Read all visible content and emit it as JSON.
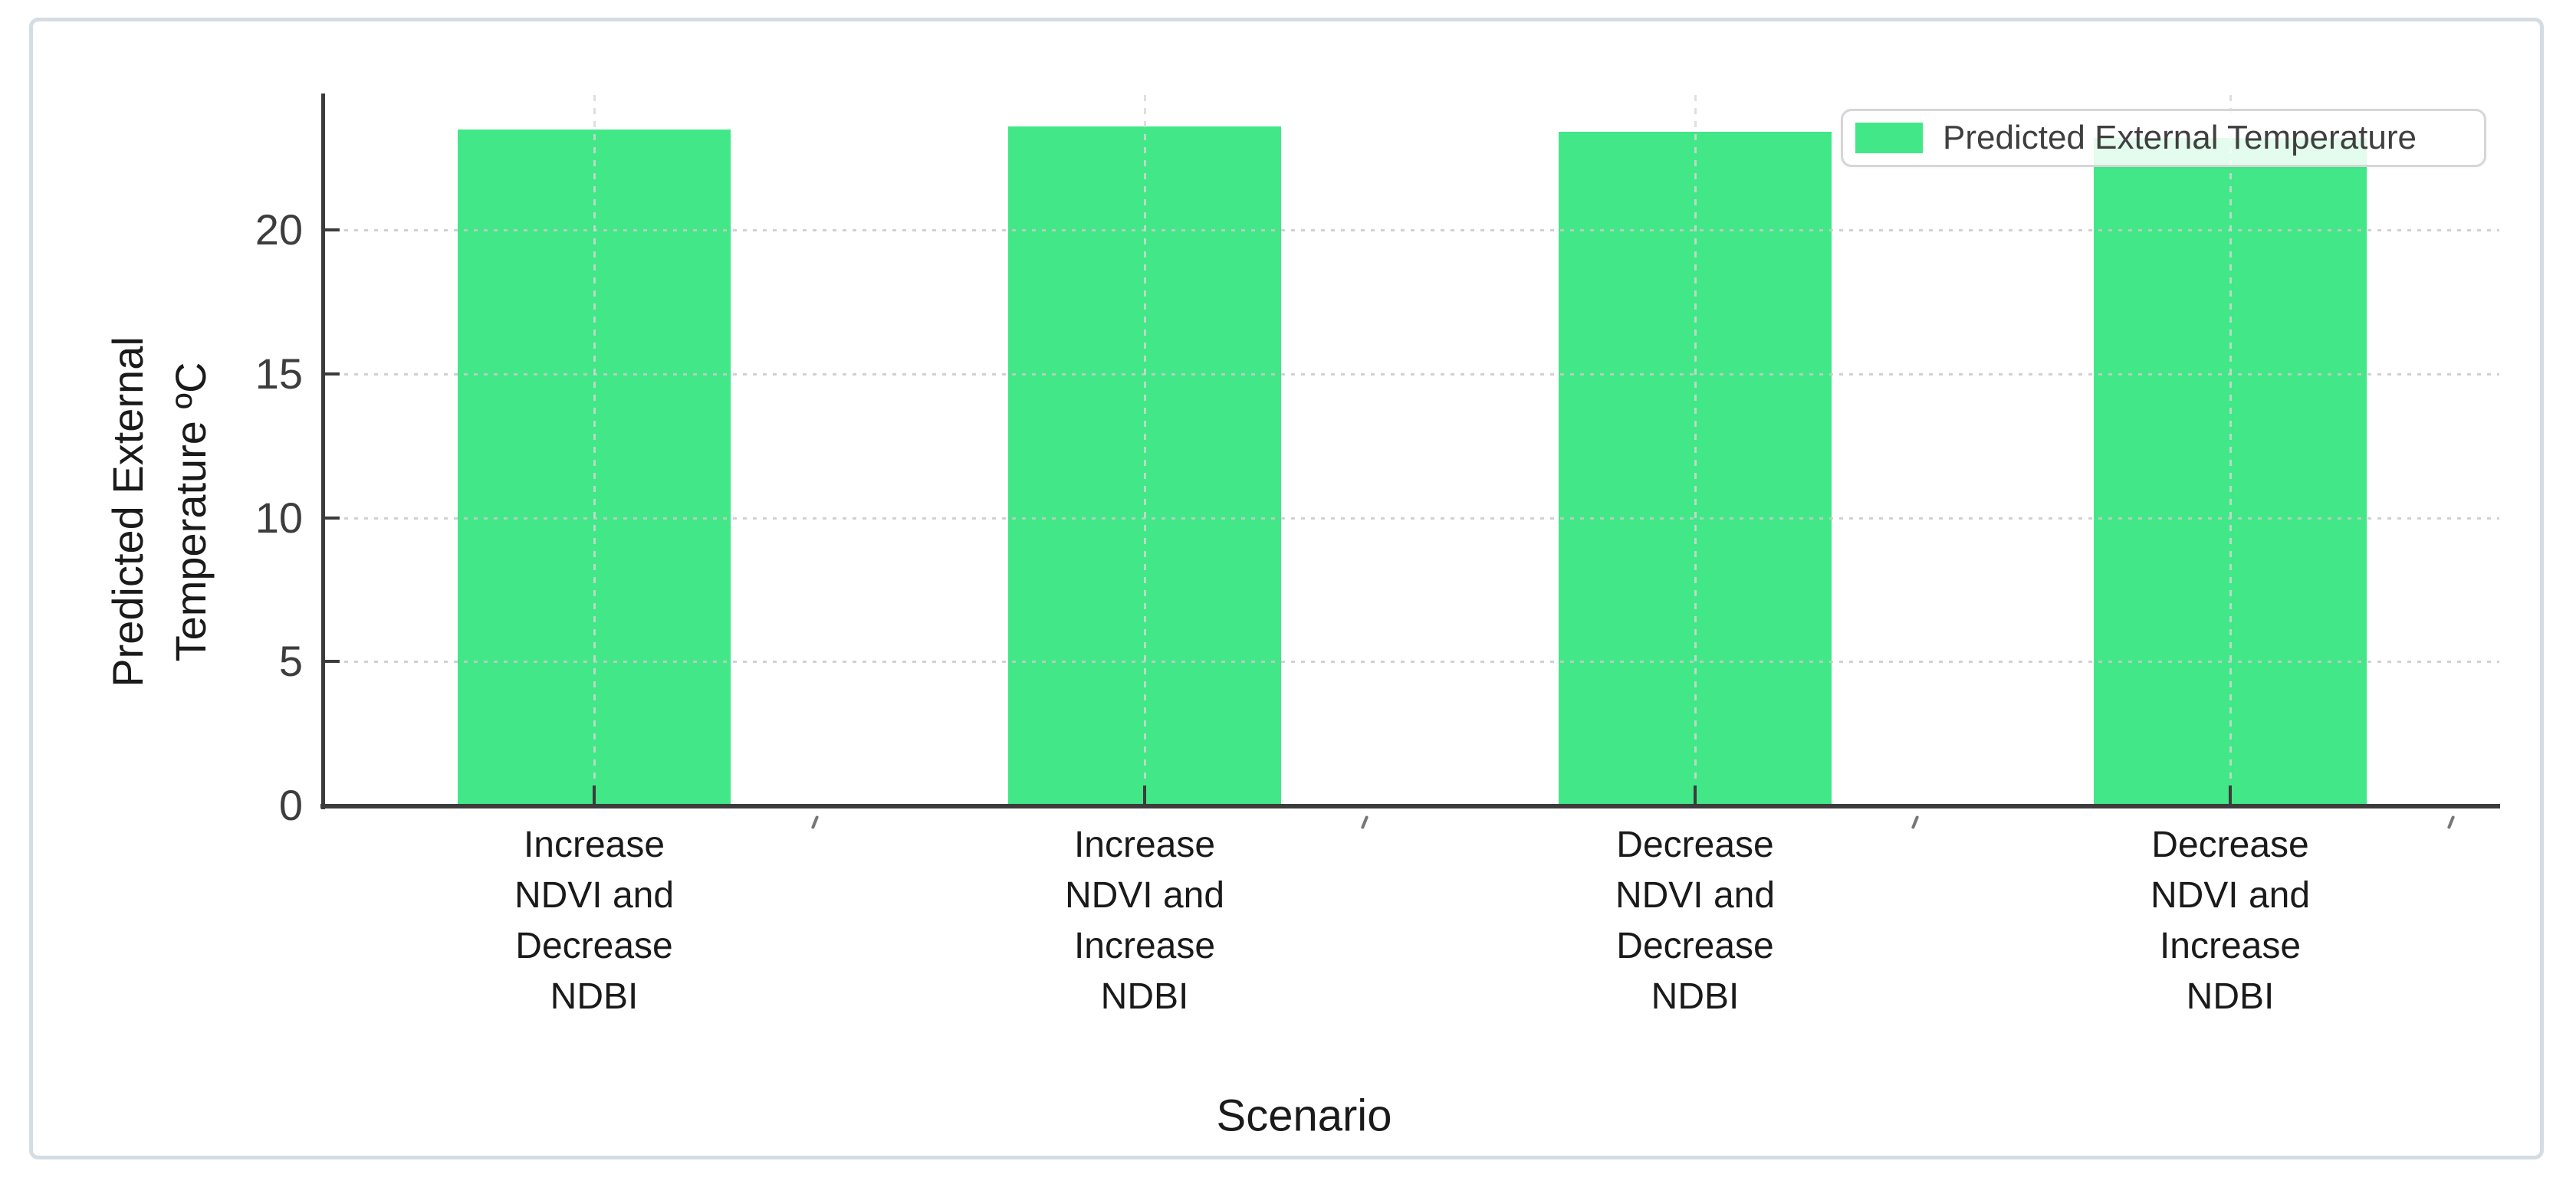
{
  "chart_data": {
    "type": "bar",
    "title": "",
    "categories": [
      "Increase NDVI and Decrease NDBI",
      "Increase NDVI and Increase NDBI",
      "Decrease NDVI and Decrease NDBI",
      "Decrease NDVI and Increase NDBI"
    ],
    "category_lines": [
      [
        "Increase",
        "NDVI and",
        "Decrease",
        "NDBI"
      ],
      [
        "Increase",
        "NDVI and",
        "Increase",
        "NDBI"
      ],
      [
        "Decrease",
        "NDVI and",
        "Decrease",
        "NDBI"
      ],
      [
        "Decrease",
        "NDVI and",
        "Increase",
        "NDBI"
      ]
    ],
    "values": [
      23.5,
      23.6,
      23.4,
      23.2
    ],
    "series": [
      {
        "name": "Predicted External Temperature",
        "values": [
          23.5,
          23.6,
          23.4,
          23.2
        ]
      }
    ],
    "xlabel": "Scenario",
    "ylabel": "Predicted External Temperature ºC",
    "ylabel_lines": [
      "Predicted External",
      "Temperature ºC"
    ],
    "yticks": [
      0,
      5,
      10,
      15,
      20
    ],
    "ylim": [
      0,
      24.7
    ],
    "grid": true,
    "legend_position": "upper right"
  },
  "legend": {
    "label": "Predicted External Temperature"
  },
  "colors": {
    "bar": "#42E787",
    "axis": "#3C3C3C",
    "grid": "#C9C9C9",
    "text": "#1A1A1A",
    "tick_text": "#3D3D3D",
    "legend_border": "#D6D6D6",
    "card_border": "#D4DCE4"
  }
}
